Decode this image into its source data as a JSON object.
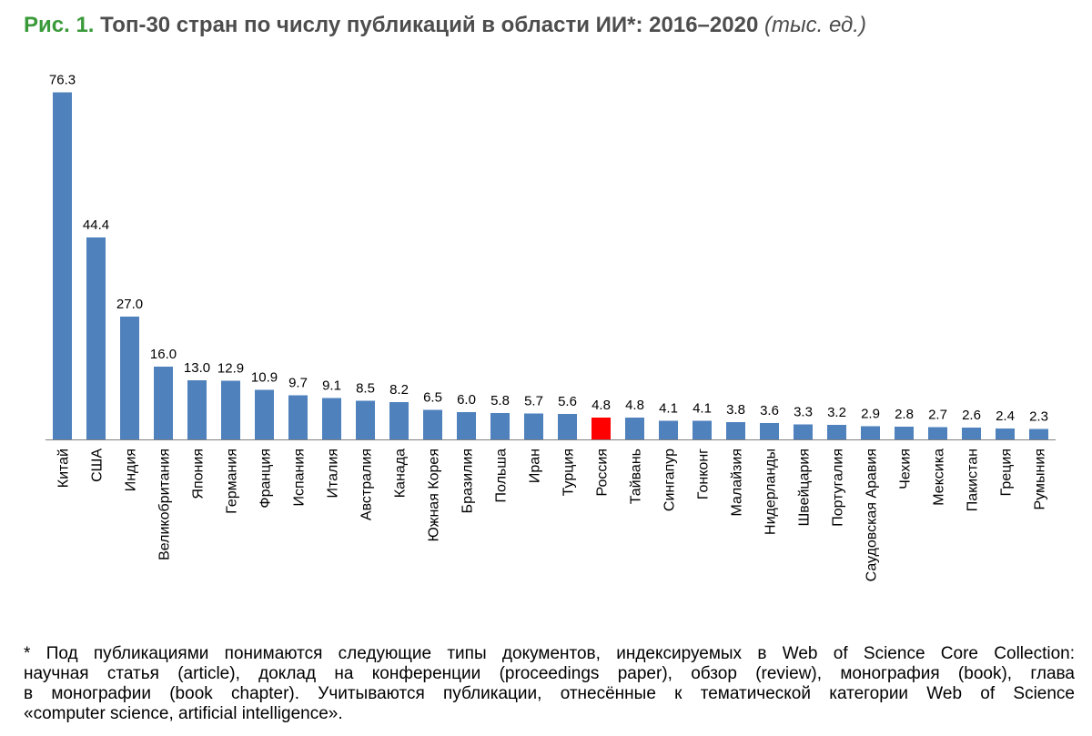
{
  "title": {
    "fig_label": "Рис. 1.",
    "main": "Топ-30 стран по числу публикаций в области ИИ*: 2016–2020",
    "unit": "(тыс. ед.)"
  },
  "colors": {
    "bar": "#4f81bd",
    "highlight": "#ff0000",
    "axis": "#808080"
  },
  "chart_data": {
    "type": "bar",
    "categories": [
      "Китай",
      "США",
      "Индия",
      "Великобритания",
      "Япония",
      "Германия",
      "Франция",
      "Испания",
      "Италия",
      "Австралия",
      "Канада",
      "Южная Корея",
      "Бразилия",
      "Польша",
      "Иран",
      "Турция",
      "Россия",
      "Тайвань",
      "Сингапур",
      "Гонконг",
      "Малайзия",
      "Нидерланды",
      "Швейцария",
      "Португалия",
      "Саудовская Аравия",
      "Чехия",
      "Мексика",
      "Пакистан",
      "Греция",
      "Румыния"
    ],
    "values": [
      76.3,
      44.4,
      27.0,
      16.0,
      13.0,
      12.9,
      10.9,
      9.7,
      9.1,
      8.5,
      8.2,
      6.5,
      6.0,
      5.8,
      5.7,
      5.6,
      4.8,
      4.8,
      4.1,
      4.1,
      3.8,
      3.6,
      3.3,
      3.2,
      2.9,
      2.8,
      2.7,
      2.6,
      2.4,
      2.3
    ],
    "value_labels": [
      "76.3",
      "44.4",
      "27.0",
      "16.0",
      "13.0",
      "12.9",
      "10.9",
      "9.7",
      "9.1",
      "8.5",
      "8.2",
      "6.5",
      "6.0",
      "5.8",
      "5.7",
      "5.6",
      "4.8",
      "4.8",
      "4.1",
      "4.1",
      "3.8",
      "3.6",
      "3.3",
      "3.2",
      "2.9",
      "2.8",
      "2.7",
      "2.6",
      "2.4",
      "2.3"
    ],
    "highlight_category": "Россия",
    "ylim": [
      0,
      80
    ]
  },
  "footnote": {
    "line1": "* Под публикациями понимаются следующие типы документов, индексируемых в Web of Science Core Collection:",
    "line2": "научная статья (article), доклад на конференции (proceedings paper), обзор (review), монография (book), глава",
    "line3": "в монографии (book chapter). Учитываются публикации, отнесённые к тематической категории Web of Science",
    "line4": "«computer science, artificial intelligence»."
  }
}
